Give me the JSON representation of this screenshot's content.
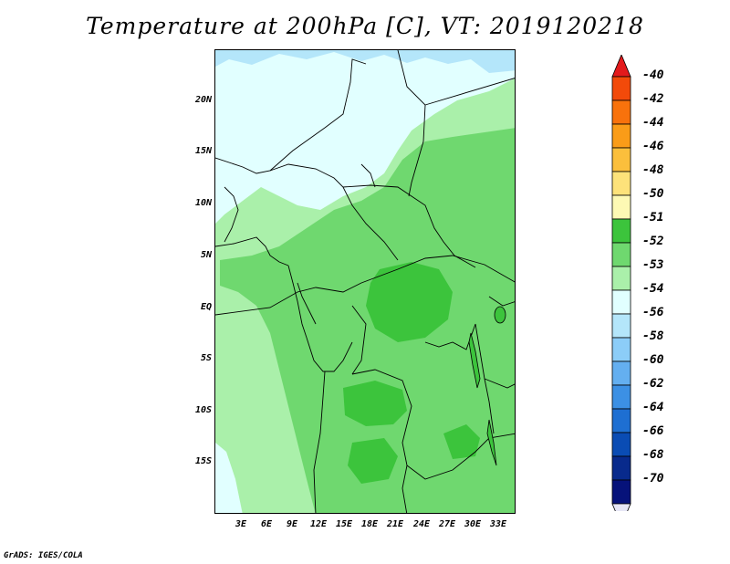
{
  "title": "Temperature at 200hPa [C], VT: 2019120218",
  "footer": "GrADS: IGES/COLA",
  "lat_labels": [
    "20N",
    "15N",
    "10N",
    "5N",
    "EQ",
    "5S",
    "10S",
    "15S"
  ],
  "lon_labels": [
    "3E",
    "6E",
    "9E",
    "12E",
    "15E",
    "18E",
    "21E",
    "24E",
    "27E",
    "30E",
    "33E"
  ],
  "colorbar": {
    "labels": [
      "-40",
      "-42",
      "-44",
      "-46",
      "-48",
      "-50",
      "-51",
      "-52",
      "-53",
      "-54",
      "-56",
      "-58",
      "-60",
      "-62",
      "-64",
      "-66",
      "-68",
      "-70"
    ],
    "colors": [
      "#e31a1c",
      "#f24a0a",
      "#f8720c",
      "#fa9c18",
      "#fbbf3c",
      "#fde27a",
      "#fdf9b4",
      "#3cc43c",
      "#6fd86f",
      "#aaf0aa",
      "#e1ffff",
      "#b4e6fa",
      "#8ccdf8",
      "#64aff0",
      "#3c90e4",
      "#1e6fd2",
      "#0a4cb4",
      "#082a8c",
      "#06127a",
      "#e6e6f5"
    ]
  },
  "colors": {
    "land_base": "#aaf0aa",
    "mid_green": "#6fd86f",
    "dark_green": "#3cc43c",
    "pale_cyan": "#e1ffff",
    "light_blue": "#b4e6fa"
  }
}
